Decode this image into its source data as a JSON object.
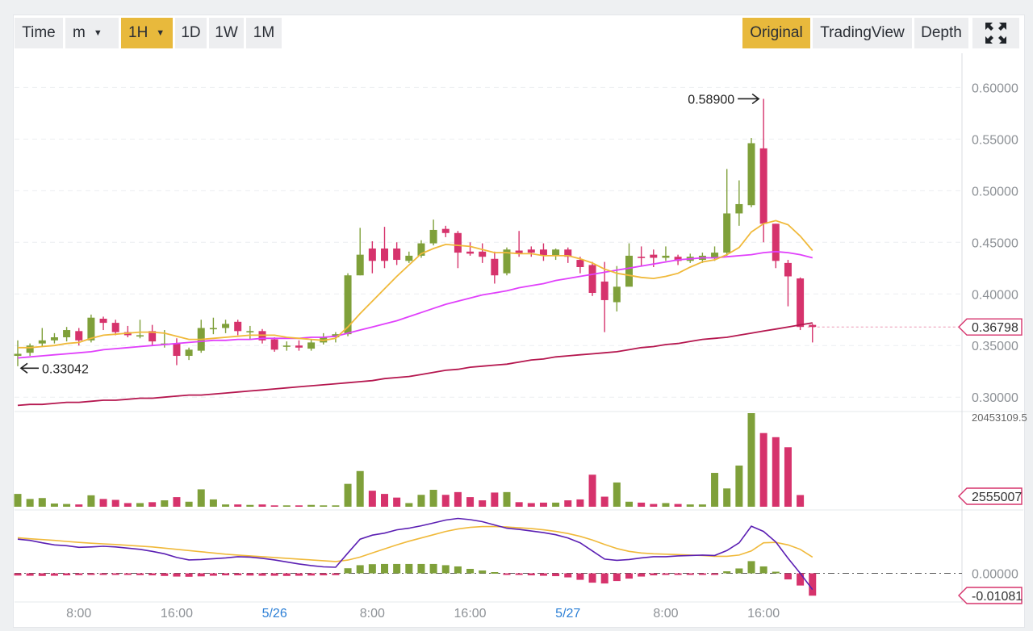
{
  "toolbar": {
    "intervals": [
      {
        "label": "Time",
        "active": false
      },
      {
        "label": "m",
        "active": false,
        "dropdown": true
      },
      {
        "label": "1H",
        "active": true,
        "dropdown": true
      },
      {
        "label": "1D",
        "active": false
      },
      {
        "label": "1W",
        "active": false
      },
      {
        "label": "1M",
        "active": false
      }
    ],
    "views": [
      {
        "label": "Original",
        "active": true
      },
      {
        "label": "TradingView",
        "active": false
      },
      {
        "label": "Depth",
        "active": false
      }
    ],
    "fullscreen_icon": "expand-icon"
  },
  "colors": {
    "up": "#7fa03a",
    "down": "#d6336c",
    "ma7": "#f0b93a",
    "ma25": "#e040fb",
    "ma99": "#b5174f",
    "dif": "#5b1fb3",
    "dea": "#f0b93a",
    "accent": "#e8b93c"
  },
  "chart_data": {
    "type": "candlestick",
    "price_axis": {
      "ticks": [
        "0.60000",
        "0.55000",
        "0.50000",
        "0.45000",
        "0.40000",
        "0.35000",
        "0.30000"
      ],
      "ylim": [
        0.29,
        0.63
      ]
    },
    "time_axis": {
      "ticks": [
        {
          "label": "8:00",
          "candle": 5,
          "highlight": false
        },
        {
          "label": "16:00",
          "candle": 13,
          "highlight": false
        },
        {
          "label": "5/26",
          "candle": 21,
          "highlight": true
        },
        {
          "label": "8:00",
          "candle": 29,
          "highlight": false
        },
        {
          "label": "16:00",
          "candle": 37,
          "highlight": false
        },
        {
          "label": "5/27",
          "candle": 45,
          "highlight": true
        },
        {
          "label": "8:00",
          "candle": 53,
          "highlight": false
        },
        {
          "label": "16:00",
          "candle": 61,
          "highlight": false
        }
      ]
    },
    "high_marker": {
      "label": "0.58900",
      "candle": 61,
      "value": 0.589
    },
    "low_marker": {
      "label": "0.33042",
      "candle": 0,
      "value": 0.3304
    },
    "last_price_label": "0.36798",
    "last_price": 0.368,
    "candles": [
      [
        0.34,
        0.342,
        0.355,
        0.33
      ],
      [
        0.343,
        0.35,
        0.352,
        0.34
      ],
      [
        0.352,
        0.355,
        0.367,
        0.349
      ],
      [
        0.355,
        0.358,
        0.362,
        0.352
      ],
      [
        0.358,
        0.365,
        0.368,
        0.354
      ],
      [
        0.364,
        0.355,
        0.367,
        0.35
      ],
      [
        0.355,
        0.377,
        0.38,
        0.353
      ],
      [
        0.376,
        0.372,
        0.378,
        0.365
      ],
      [
        0.372,
        0.363,
        0.375,
        0.36
      ],
      [
        0.363,
        0.36,
        0.369,
        0.358
      ],
      [
        0.36,
        0.36,
        0.375,
        0.357
      ],
      [
        0.364,
        0.354,
        0.37,
        0.35
      ],
      [
        0.352,
        0.352,
        0.365,
        0.348
      ],
      [
        0.352,
        0.34,
        0.357,
        0.331
      ],
      [
        0.34,
        0.346,
        0.348,
        0.336
      ],
      [
        0.345,
        0.367,
        0.375,
        0.343
      ],
      [
        0.367,
        0.367,
        0.377,
        0.361
      ],
      [
        0.367,
        0.371,
        0.375,
        0.362
      ],
      [
        0.373,
        0.364,
        0.375,
        0.36
      ],
      [
        0.363,
        0.364,
        0.369,
        0.356
      ],
      [
        0.364,
        0.355,
        0.366,
        0.352
      ],
      [
        0.356,
        0.346,
        0.358,
        0.344
      ],
      [
        0.35,
        0.35,
        0.354,
        0.345
      ],
      [
        0.35,
        0.348,
        0.355,
        0.345
      ],
      [
        0.347,
        0.353,
        0.356,
        0.345
      ],
      [
        0.353,
        0.358,
        0.362,
        0.351
      ],
      [
        0.358,
        0.361,
        0.363,
        0.353
      ],
      [
        0.361,
        0.418,
        0.42,
        0.359
      ],
      [
        0.418,
        0.438,
        0.464,
        0.418
      ],
      [
        0.444,
        0.432,
        0.451,
        0.42
      ],
      [
        0.444,
        0.432,
        0.465,
        0.425
      ],
      [
        0.444,
        0.433,
        0.45,
        0.428
      ],
      [
        0.432,
        0.437,
        0.441,
        0.43
      ],
      [
        0.437,
        0.449,
        0.452,
        0.435
      ],
      [
        0.449,
        0.462,
        0.472,
        0.447
      ],
      [
        0.463,
        0.459,
        0.466,
        0.455
      ],
      [
        0.459,
        0.44,
        0.461,
        0.425
      ],
      [
        0.441,
        0.439,
        0.45,
        0.437
      ],
      [
        0.441,
        0.436,
        0.449,
        0.43
      ],
      [
        0.434,
        0.418,
        0.441,
        0.41
      ],
      [
        0.42,
        0.443,
        0.445,
        0.418
      ],
      [
        0.442,
        0.439,
        0.461,
        0.436
      ],
      [
        0.443,
        0.44,
        0.446,
        0.436
      ],
      [
        0.443,
        0.437,
        0.449,
        0.432
      ],
      [
        0.437,
        0.443,
        0.444,
        0.433
      ],
      [
        0.443,
        0.436,
        0.445,
        0.43
      ],
      [
        0.433,
        0.426,
        0.436,
        0.42
      ],
      [
        0.428,
        0.401,
        0.431,
        0.398
      ],
      [
        0.412,
        0.394,
        0.431,
        0.363
      ],
      [
        0.392,
        0.407,
        0.427,
        0.383
      ],
      [
        0.407,
        0.437,
        0.449,
        0.408
      ],
      [
        0.436,
        0.435,
        0.446,
        0.427
      ],
      [
        0.438,
        0.435,
        0.443,
        0.426
      ],
      [
        0.435,
        0.437,
        0.446,
        0.432
      ],
      [
        0.436,
        0.432,
        0.438,
        0.428
      ],
      [
        0.432,
        0.436,
        0.439,
        0.43
      ],
      [
        0.433,
        0.437,
        0.44,
        0.43
      ],
      [
        0.435,
        0.44,
        0.446,
        0.432
      ],
      [
        0.44,
        0.478,
        0.521,
        0.437
      ],
      [
        0.478,
        0.487,
        0.51,
        0.466
      ],
      [
        0.486,
        0.546,
        0.551,
        0.484
      ],
      [
        0.541,
        0.468,
        0.589,
        0.45
      ],
      [
        0.468,
        0.432,
        0.468,
        0.425
      ],
      [
        0.43,
        0.417,
        0.433,
        0.388
      ],
      [
        0.415,
        0.368,
        0.416,
        0.365
      ],
      [
        0.37,
        0.368,
        0.371,
        0.353
      ]
    ],
    "ma7": [
      0.348,
      0.348,
      0.349,
      0.35,
      0.352,
      0.353,
      0.357,
      0.36,
      0.361,
      0.362,
      0.363,
      0.363,
      0.362,
      0.359,
      0.356,
      0.356,
      0.357,
      0.358,
      0.359,
      0.36,
      0.36,
      0.36,
      0.358,
      0.357,
      0.356,
      0.355,
      0.357,
      0.368,
      0.381,
      0.393,
      0.405,
      0.417,
      0.428,
      0.439,
      0.444,
      0.448,
      0.447,
      0.446,
      0.443,
      0.44,
      0.44,
      0.439,
      0.439,
      0.437,
      0.437,
      0.437,
      0.434,
      0.43,
      0.424,
      0.42,
      0.418,
      0.416,
      0.415,
      0.417,
      0.42,
      0.426,
      0.431,
      0.433,
      0.438,
      0.445,
      0.46,
      0.468,
      0.471,
      0.467,
      0.456,
      0.442
    ],
    "ma25": [
      0.338,
      0.339,
      0.34,
      0.341,
      0.342,
      0.343,
      0.344,
      0.346,
      0.347,
      0.348,
      0.349,
      0.35,
      0.351,
      0.352,
      0.353,
      0.354,
      0.355,
      0.355,
      0.356,
      0.356,
      0.357,
      0.357,
      0.357,
      0.357,
      0.358,
      0.358,
      0.359,
      0.362,
      0.365,
      0.368,
      0.371,
      0.374,
      0.378,
      0.382,
      0.386,
      0.39,
      0.393,
      0.396,
      0.399,
      0.401,
      0.403,
      0.406,
      0.408,
      0.41,
      0.413,
      0.415,
      0.417,
      0.419,
      0.421,
      0.423,
      0.425,
      0.427,
      0.429,
      0.431,
      0.433,
      0.434,
      0.435,
      0.435,
      0.436,
      0.437,
      0.438,
      0.44,
      0.441,
      0.44,
      0.438,
      0.435
    ],
    "ma99": [
      0.292,
      0.293,
      0.293,
      0.294,
      0.295,
      0.295,
      0.296,
      0.297,
      0.297,
      0.298,
      0.299,
      0.299,
      0.3,
      0.301,
      0.302,
      0.302,
      0.303,
      0.304,
      0.305,
      0.306,
      0.307,
      0.308,
      0.309,
      0.31,
      0.311,
      0.312,
      0.313,
      0.314,
      0.315,
      0.316,
      0.318,
      0.319,
      0.32,
      0.322,
      0.324,
      0.326,
      0.327,
      0.329,
      0.33,
      0.331,
      0.332,
      0.334,
      0.336,
      0.337,
      0.339,
      0.34,
      0.341,
      0.342,
      0.343,
      0.344,
      0.346,
      0.348,
      0.349,
      0.351,
      0.352,
      0.354,
      0.356,
      0.357,
      0.358,
      0.36,
      0.362,
      0.364,
      0.366,
      0.368,
      0.37,
      0.372
    ],
    "volume": {
      "max_label": "20453109.5",
      "last_label": "2555007",
      "ylim": [
        0,
        20453109.5
      ],
      "values": [
        2800000,
        1700000,
        1900000,
        700000,
        600000,
        500000,
        2500000,
        1700000,
        1500000,
        800000,
        800000,
        1000000,
        1400000,
        2100000,
        1100000,
        3800000,
        1600000,
        500000,
        500000,
        400000,
        500000,
        300000,
        300000,
        300000,
        400000,
        300000,
        300000,
        5000000,
        7800000,
        3500000,
        2800000,
        2000000,
        800000,
        2600000,
        3700000,
        2600000,
        3200000,
        2100000,
        1400000,
        3100000,
        3200000,
        1000000,
        800000,
        900000,
        900000,
        1400000,
        1600000,
        7000000,
        2200000,
        5300000,
        1100000,
        900000,
        600000,
        800000,
        600000,
        500000,
        500000,
        7400000,
        4000000,
        9000000,
        20453109,
        16100000,
        15200000,
        13000000,
        2555007
      ]
    },
    "macd": {
      "zero_label": "0.00000",
      "last_label": "-0.01081",
      "ylim": [
        -0.0125,
        0.028
      ],
      "dif": [
        0.0168,
        0.0162,
        0.015,
        0.014,
        0.0136,
        0.0128,
        0.013,
        0.0133,
        0.013,
        0.0124,
        0.0118,
        0.0108,
        0.0096,
        0.0078,
        0.0066,
        0.0068,
        0.0072,
        0.0076,
        0.0082,
        0.008,
        0.0074,
        0.0066,
        0.0056,
        0.0046,
        0.0038,
        0.0032,
        0.003,
        0.01,
        0.0168,
        0.0188,
        0.0198,
        0.0214,
        0.0222,
        0.0234,
        0.0248,
        0.0262,
        0.027,
        0.0264,
        0.0254,
        0.0238,
        0.0222,
        0.0216,
        0.0208,
        0.02,
        0.019,
        0.0174,
        0.015,
        0.011,
        0.007,
        0.0064,
        0.0068,
        0.0076,
        0.0082,
        0.0082,
        0.0086,
        0.0088,
        0.009,
        0.0088,
        0.0112,
        0.015,
        0.0232,
        0.0206,
        0.0154,
        0.0074,
        0.0,
        -0.008
      ],
      "dea": [
        0.0175,
        0.017,
        0.0166,
        0.0162,
        0.0157,
        0.0152,
        0.0148,
        0.0145,
        0.0142,
        0.0138,
        0.0134,
        0.013,
        0.0124,
        0.0118,
        0.0112,
        0.0106,
        0.01,
        0.0094,
        0.009,
        0.0086,
        0.0082,
        0.0078,
        0.0074,
        0.007,
        0.0066,
        0.0062,
        0.0058,
        0.0065,
        0.008,
        0.01,
        0.012,
        0.014,
        0.0158,
        0.0174,
        0.019,
        0.0206,
        0.0218,
        0.0226,
        0.023,
        0.023,
        0.0228,
        0.0224,
        0.022,
        0.0214,
        0.0206,
        0.0196,
        0.0182,
        0.0164,
        0.0142,
        0.0122,
        0.0108,
        0.01,
        0.0096,
        0.0094,
        0.0092,
        0.009,
        0.0088,
        0.0084,
        0.0084,
        0.009,
        0.011,
        0.015,
        0.0152,
        0.014,
        0.0118,
        0.008
      ],
      "hist": [
        -0.0011,
        -0.0012,
        -0.0013,
        -0.0012,
        -0.001,
        -0.0009,
        -0.0008,
        -0.0008,
        -0.0007,
        -0.0008,
        -0.0009,
        -0.001,
        -0.0013,
        -0.0016,
        -0.0017,
        -0.0015,
        -0.0012,
        -0.001,
        -0.001,
        -0.0011,
        -0.0012,
        -0.0012,
        -0.0013,
        -0.0012,
        -0.0011,
        -0.001,
        -0.0009,
        0.0025,
        0.004,
        0.0045,
        0.0046,
        0.0046,
        0.0046,
        0.0046,
        0.0046,
        0.004,
        0.0034,
        0.0022,
        0.0014,
        0.0006,
        -0.0004,
        -0.0006,
        -0.001,
        -0.0012,
        -0.0014,
        -0.002,
        -0.0032,
        -0.0046,
        -0.005,
        -0.0038,
        -0.0026,
        -0.0016,
        -0.001,
        -0.0008,
        -0.0006,
        -0.0004,
        -0.0004,
        -0.0002,
        0.001,
        0.0024,
        0.006,
        0.0034,
        0.0008,
        -0.003,
        -0.006,
        -0.011
      ]
    }
  }
}
